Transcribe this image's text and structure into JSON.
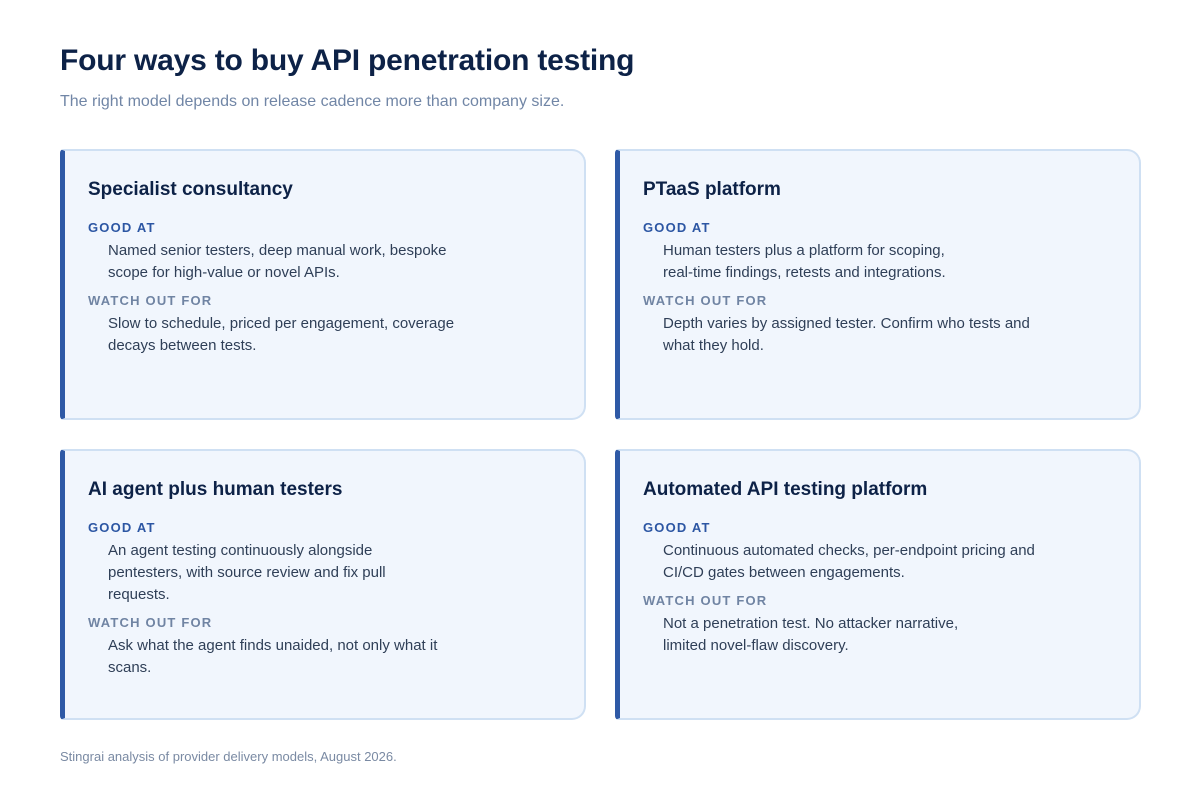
{
  "header": {
    "title": "Four ways to buy API penetration testing",
    "subtitle": "The right model depends on release cadence more than company size."
  },
  "labels": {
    "good_at": "GOOD AT",
    "watch_out_for": "WATCH OUT FOR"
  },
  "cards": [
    {
      "title": "Specialist consultancy",
      "good_at": "Named senior testers, deep manual work, bespoke scope for high-value or novel APIs.",
      "watch_out_for": "Slow to schedule, priced per engagement, coverage decays between tests."
    },
    {
      "title": "PTaaS platform",
      "good_at": "Human testers plus a platform for scoping, real-time findings, retests and integrations.",
      "watch_out_for": "Depth varies by assigned tester. Confirm who tests and what they hold."
    },
    {
      "title": "AI agent plus human testers",
      "good_at": "An agent testing continuously alongside pentesters, with source review and fix pull requests.",
      "watch_out_for": "Ask what the agent finds unaided, not only what it scans."
    },
    {
      "title": "Automated API testing platform",
      "good_at": "Continuous automated checks, per-endpoint pricing and CI/CD gates between engagements.",
      "watch_out_for": "Not a penetration test. No attacker narrative, limited novel-flaw discovery."
    }
  ],
  "footer": {
    "source": "Stingrai analysis of provider delivery models, August 2026."
  },
  "colors": {
    "accent": "#2e59a6",
    "card_background": "#f1f6fd",
    "card_border": "#cfe0f3",
    "title_text": "#0d2247"
  }
}
